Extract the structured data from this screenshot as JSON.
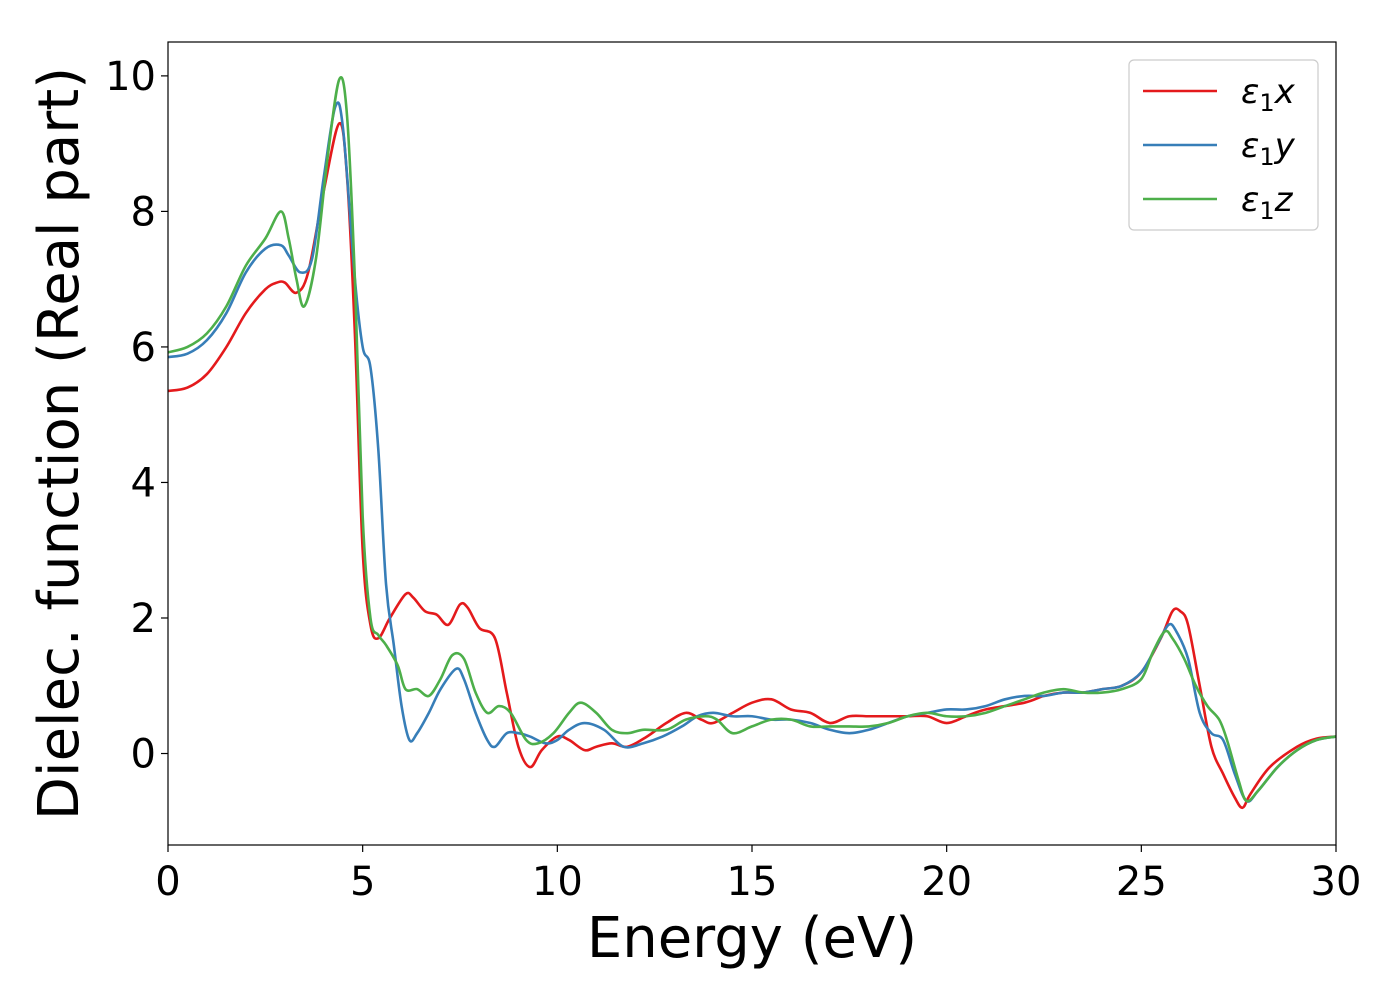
{
  "chart_data": {
    "type": "line",
    "title": "",
    "xlabel": "Energy (eV)",
    "ylabel": "Dielec. function (Real part)",
    "xlim": [
      0,
      30
    ],
    "ylim": [
      -1.35,
      10.5
    ],
    "xticks": [
      0,
      5,
      10,
      15,
      20,
      25,
      30
    ],
    "yticks": [
      0,
      2,
      4,
      6,
      8,
      10
    ],
    "xtick_labels": [
      "0",
      "5",
      "10",
      "15",
      "20",
      "25",
      "30"
    ],
    "ytick_labels": [
      "0",
      "2",
      "4",
      "6",
      "8",
      "10"
    ],
    "grid": false,
    "legend_position": "top-right",
    "series": [
      {
        "name": "ε1x",
        "legend": {
          "symbol": "ε",
          "sub": "1",
          "axis": "x"
        },
        "color": "#e41a1c",
        "points": [
          [
            0,
            5.35
          ],
          [
            0.5,
            5.4
          ],
          [
            1.0,
            5.6
          ],
          [
            1.5,
            6.0
          ],
          [
            2.0,
            6.5
          ],
          [
            2.5,
            6.85
          ],
          [
            2.8,
            6.95
          ],
          [
            3.0,
            6.95
          ],
          [
            3.3,
            6.8
          ],
          [
            3.6,
            7.1
          ],
          [
            4.0,
            8.3
          ],
          [
            4.4,
            9.3
          ],
          [
            4.6,
            8.5
          ],
          [
            4.8,
            6.2
          ],
          [
            5.0,
            3.0
          ],
          [
            5.2,
            1.9
          ],
          [
            5.4,
            1.7
          ],
          [
            5.7,
            2.0
          ],
          [
            6.1,
            2.35
          ],
          [
            6.3,
            2.3
          ],
          [
            6.6,
            2.1
          ],
          [
            6.9,
            2.05
          ],
          [
            7.2,
            1.9
          ],
          [
            7.5,
            2.2
          ],
          [
            7.7,
            2.15
          ],
          [
            8.0,
            1.85
          ],
          [
            8.4,
            1.7
          ],
          [
            8.7,
            0.9
          ],
          [
            9.0,
            0.1
          ],
          [
            9.3,
            -0.2
          ],
          [
            9.6,
            0.05
          ],
          [
            10.0,
            0.25
          ],
          [
            10.3,
            0.2
          ],
          [
            10.7,
            0.05
          ],
          [
            11.0,
            0.1
          ],
          [
            11.4,
            0.15
          ],
          [
            11.8,
            0.1
          ],
          [
            12.3,
            0.25
          ],
          [
            12.8,
            0.45
          ],
          [
            13.3,
            0.6
          ],
          [
            13.7,
            0.5
          ],
          [
            14.0,
            0.45
          ],
          [
            14.5,
            0.6
          ],
          [
            15.0,
            0.75
          ],
          [
            15.5,
            0.8
          ],
          [
            16.0,
            0.65
          ],
          [
            16.5,
            0.6
          ],
          [
            17.0,
            0.45
          ],
          [
            17.5,
            0.55
          ],
          [
            18.0,
            0.55
          ],
          [
            18.5,
            0.55
          ],
          [
            19.0,
            0.55
          ],
          [
            19.5,
            0.55
          ],
          [
            20.0,
            0.45
          ],
          [
            20.5,
            0.55
          ],
          [
            21.0,
            0.65
          ],
          [
            22.0,
            0.75
          ],
          [
            22.5,
            0.85
          ],
          [
            23.0,
            0.9
          ],
          [
            23.5,
            0.9
          ],
          [
            24.0,
            0.95
          ],
          [
            24.5,
            1.0
          ],
          [
            25.0,
            1.2
          ],
          [
            25.5,
            1.7
          ],
          [
            25.8,
            2.1
          ],
          [
            26.0,
            2.1
          ],
          [
            26.2,
            1.9
          ],
          [
            26.5,
            1.0
          ],
          [
            26.8,
            0.1
          ],
          [
            27.1,
            -0.3
          ],
          [
            27.4,
            -0.65
          ],
          [
            27.6,
            -0.8
          ],
          [
            27.8,
            -0.6
          ],
          [
            28.3,
            -0.2
          ],
          [
            29.0,
            0.1
          ],
          [
            29.5,
            0.22
          ],
          [
            30.0,
            0.25
          ]
        ]
      },
      {
        "name": "ε1y",
        "legend": {
          "symbol": "ε",
          "sub": "1",
          "axis": "y"
        },
        "color": "#377eb8",
        "points": [
          [
            0,
            5.85
          ],
          [
            0.5,
            5.9
          ],
          [
            1.0,
            6.1
          ],
          [
            1.5,
            6.5
          ],
          [
            2.0,
            7.1
          ],
          [
            2.5,
            7.45
          ],
          [
            2.9,
            7.5
          ],
          [
            3.1,
            7.35
          ],
          [
            3.4,
            7.1
          ],
          [
            3.7,
            7.3
          ],
          [
            4.0,
            8.5
          ],
          [
            4.3,
            9.55
          ],
          [
            4.5,
            9.2
          ],
          [
            4.8,
            7.0
          ],
          [
            5.0,
            6.0
          ],
          [
            5.2,
            5.7
          ],
          [
            5.4,
            4.5
          ],
          [
            5.6,
            2.5
          ],
          [
            5.8,
            1.6
          ],
          [
            6.0,
            0.7
          ],
          [
            6.2,
            0.2
          ],
          [
            6.4,
            0.3
          ],
          [
            6.7,
            0.6
          ],
          [
            7.0,
            0.95
          ],
          [
            7.4,
            1.25
          ],
          [
            7.6,
            1.1
          ],
          [
            7.9,
            0.6
          ],
          [
            8.2,
            0.2
          ],
          [
            8.4,
            0.1
          ],
          [
            8.7,
            0.3
          ],
          [
            9.0,
            0.3
          ],
          [
            9.3,
            0.25
          ],
          [
            9.7,
            0.15
          ],
          [
            10.0,
            0.2
          ],
          [
            10.3,
            0.35
          ],
          [
            10.7,
            0.45
          ],
          [
            11.2,
            0.35
          ],
          [
            11.7,
            0.1
          ],
          [
            12.2,
            0.15
          ],
          [
            12.7,
            0.25
          ],
          [
            13.2,
            0.4
          ],
          [
            13.6,
            0.55
          ],
          [
            14.0,
            0.6
          ],
          [
            14.5,
            0.55
          ],
          [
            15.0,
            0.55
          ],
          [
            15.5,
            0.5
          ],
          [
            16.0,
            0.5
          ],
          [
            16.5,
            0.45
          ],
          [
            17.0,
            0.35
          ],
          [
            17.5,
            0.3
          ],
          [
            18.0,
            0.35
          ],
          [
            18.5,
            0.45
          ],
          [
            19.0,
            0.55
          ],
          [
            19.5,
            0.6
          ],
          [
            20.0,
            0.65
          ],
          [
            20.5,
            0.65
          ],
          [
            21.0,
            0.7
          ],
          [
            21.5,
            0.8
          ],
          [
            22.0,
            0.85
          ],
          [
            22.5,
            0.85
          ],
          [
            23.0,
            0.9
          ],
          [
            23.5,
            0.9
          ],
          [
            24.0,
            0.95
          ],
          [
            24.5,
            1.0
          ],
          [
            25.0,
            1.2
          ],
          [
            25.4,
            1.6
          ],
          [
            25.7,
            1.9
          ],
          [
            25.9,
            1.8
          ],
          [
            26.2,
            1.4
          ],
          [
            26.5,
            0.6
          ],
          [
            26.8,
            0.3
          ],
          [
            27.1,
            0.2
          ],
          [
            27.4,
            -0.3
          ],
          [
            27.7,
            -0.7
          ],
          [
            28.0,
            -0.55
          ],
          [
            28.5,
            -0.2
          ],
          [
            29.0,
            0.05
          ],
          [
            29.5,
            0.2
          ],
          [
            30.0,
            0.25
          ]
        ]
      },
      {
        "name": "ε1z",
        "legend": {
          "symbol": "ε",
          "sub": "1",
          "axis": "z"
        },
        "color": "#4daf4a",
        "points": [
          [
            0,
            5.92
          ],
          [
            0.5,
            6.0
          ],
          [
            1.0,
            6.2
          ],
          [
            1.5,
            6.6
          ],
          [
            2.0,
            7.2
          ],
          [
            2.5,
            7.6
          ],
          [
            2.9,
            8.0
          ],
          [
            3.1,
            7.6
          ],
          [
            3.3,
            7.0
          ],
          [
            3.5,
            6.6
          ],
          [
            3.8,
            7.3
          ],
          [
            4.1,
            8.8
          ],
          [
            4.4,
            9.95
          ],
          [
            4.6,
            9.4
          ],
          [
            4.8,
            7.0
          ],
          [
            5.0,
            3.5
          ],
          [
            5.2,
            2.0
          ],
          [
            5.4,
            1.75
          ],
          [
            5.6,
            1.6
          ],
          [
            5.9,
            1.3
          ],
          [
            6.1,
            0.95
          ],
          [
            6.4,
            0.95
          ],
          [
            6.7,
            0.85
          ],
          [
            7.0,
            1.1
          ],
          [
            7.3,
            1.45
          ],
          [
            7.6,
            1.4
          ],
          [
            7.9,
            0.9
          ],
          [
            8.2,
            0.6
          ],
          [
            8.5,
            0.7
          ],
          [
            8.8,
            0.6
          ],
          [
            9.2,
            0.2
          ],
          [
            9.5,
            0.15
          ],
          [
            9.9,
            0.3
          ],
          [
            10.3,
            0.6
          ],
          [
            10.6,
            0.75
          ],
          [
            11.0,
            0.6
          ],
          [
            11.4,
            0.35
          ],
          [
            11.8,
            0.3
          ],
          [
            12.2,
            0.35
          ],
          [
            12.8,
            0.35
          ],
          [
            13.3,
            0.5
          ],
          [
            13.8,
            0.55
          ],
          [
            14.1,
            0.5
          ],
          [
            14.5,
            0.3
          ],
          [
            15.0,
            0.4
          ],
          [
            15.5,
            0.5
          ],
          [
            16.0,
            0.5
          ],
          [
            16.5,
            0.4
          ],
          [
            17.0,
            0.4
          ],
          [
            17.5,
            0.4
          ],
          [
            18.0,
            0.4
          ],
          [
            18.5,
            0.45
          ],
          [
            19.0,
            0.55
          ],
          [
            19.5,
            0.6
          ],
          [
            20.0,
            0.55
          ],
          [
            20.5,
            0.55
          ],
          [
            21.0,
            0.6
          ],
          [
            21.5,
            0.7
          ],
          [
            22.0,
            0.8
          ],
          [
            22.5,
            0.9
          ],
          [
            23.0,
            0.95
          ],
          [
            23.5,
            0.9
          ],
          [
            24.0,
            0.9
          ],
          [
            24.5,
            0.95
          ],
          [
            25.0,
            1.1
          ],
          [
            25.3,
            1.5
          ],
          [
            25.6,
            1.8
          ],
          [
            25.8,
            1.7
          ],
          [
            26.1,
            1.4
          ],
          [
            26.4,
            1.0
          ],
          [
            26.7,
            0.7
          ],
          [
            27.0,
            0.5
          ],
          [
            27.2,
            0.2
          ],
          [
            27.5,
            -0.4
          ],
          [
            27.7,
            -0.7
          ],
          [
            28.0,
            -0.55
          ],
          [
            28.5,
            -0.2
          ],
          [
            29.0,
            0.05
          ],
          [
            29.5,
            0.2
          ],
          [
            30.0,
            0.25
          ]
        ]
      }
    ]
  }
}
